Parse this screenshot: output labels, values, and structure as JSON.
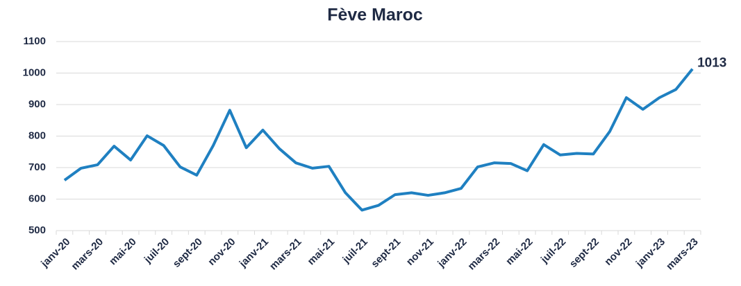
{
  "chart_data": {
    "type": "line",
    "title": "Fève Maroc",
    "categories": [
      "janv-20",
      null,
      "mars-20",
      null,
      "mai-20",
      null,
      "juil-20",
      null,
      "sept-20",
      null,
      "nov-20",
      null,
      "janv-21",
      null,
      "mars-21",
      null,
      "mai-21",
      null,
      "juil-21",
      null,
      "sept-21",
      null,
      "nov-21",
      null,
      "janv-22",
      null,
      "mars-22",
      null,
      "mai-22",
      null,
      "juil-22",
      null,
      "sept-22",
      null,
      "nov-22",
      null,
      "janv-23",
      null,
      "mars-23"
    ],
    "series": [
      {
        "name": "Fève Maroc",
        "color": "#1f80c1",
        "values": [
          660,
          698,
          709,
          768,
          724,
          801,
          770,
          702,
          676,
          770,
          882,
          763,
          819,
          760,
          715,
          698,
          704,
          620,
          565,
          580,
          614,
          620,
          612,
          620,
          634,
          702,
          715,
          713,
          690,
          773,
          740,
          745,
          743,
          815,
          922,
          885,
          922,
          948,
          1013
        ]
      }
    ],
    "ylim": [
      500,
      1100
    ],
    "yticks": [
      500,
      600,
      700,
      800,
      900,
      1000,
      1100
    ],
    "grid": true,
    "data_labels": "last"
  }
}
